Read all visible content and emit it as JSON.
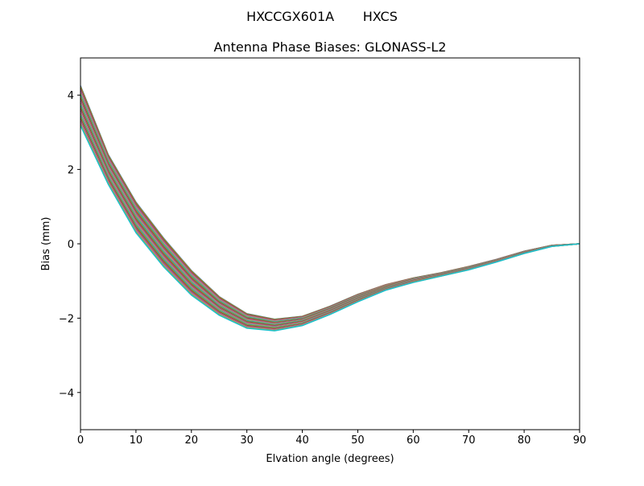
{
  "chart_data": {
    "type": "line",
    "suptitle": "HXCCGX601A       HXCS",
    "title": "Antenna Phase Biases: GLONASS-L2",
    "xlabel": "Elvation angle (degrees)",
    "ylabel": "Bias (mm)",
    "xlim": [
      0,
      90
    ],
    "ylim": [
      -5,
      5
    ],
    "xticks": [
      0,
      10,
      20,
      30,
      40,
      50,
      60,
      70,
      80,
      90
    ],
    "yticks": [
      -4,
      -2,
      0,
      2,
      4
    ],
    "grid": false,
    "legend": "none",
    "x": [
      0,
      5,
      10,
      15,
      20,
      25,
      30,
      35,
      40,
      45,
      50,
      55,
      60,
      65,
      70,
      75,
      80,
      85,
      90
    ],
    "series_count": 40,
    "series": [
      {
        "values": [
          4.25,
          2.4,
          1.12,
          0.15,
          -0.72,
          -1.42,
          -1.88,
          -2.03,
          -1.95,
          -1.68,
          -1.36,
          -1.1,
          -0.92,
          -0.78,
          -0.61,
          -0.42,
          -0.2,
          -0.04,
          0.0
        ]
      },
      {
        "values": [
          3.18,
          1.6,
          0.3,
          -0.62,
          -1.38,
          -1.92,
          -2.27,
          -2.34,
          -2.2,
          -1.9,
          -1.56,
          -1.25,
          -1.04,
          -0.87,
          -0.7,
          -0.49,
          -0.26,
          -0.07,
          0.0
        ]
      }
    ],
    "colors": [
      "#1f77b4",
      "#ff7f0e",
      "#2ca02c",
      "#d62728",
      "#9467bd",
      "#8c564b",
      "#e377c2",
      "#7f7f7f",
      "#bcbd22",
      "#17becf"
    ]
  }
}
